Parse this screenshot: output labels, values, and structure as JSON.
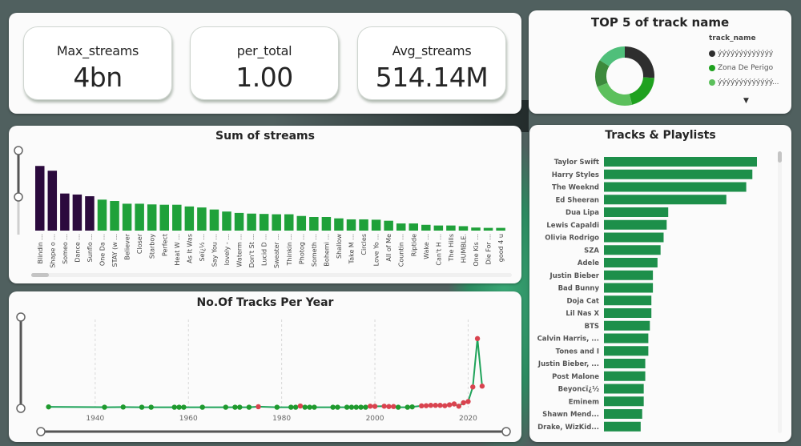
{
  "kpis": [
    {
      "label": "Max_streams",
      "value": "4bn"
    },
    {
      "label": "per_total",
      "value": "1.00"
    },
    {
      "label": "Avg_streams",
      "value": "514.14M"
    }
  ],
  "donut": {
    "title": "TOP 5 of track name",
    "legend_title": "track_name",
    "legend": [
      {
        "label": "ýýýýýýýýýýýýý",
        "color": "#2e2e2e"
      },
      {
        "label": "Zona De Perigo",
        "color": "#1fa11f"
      },
      {
        "label": "ýýýýýýýýýýýýý...",
        "color": "#5cc05c"
      }
    ],
    "more_icon": "▼",
    "slices": [
      {
        "value": 26,
        "color": "#2e2e2e"
      },
      {
        "value": 20,
        "color": "#1fa11f"
      },
      {
        "value": 23,
        "color": "#5cc05c"
      },
      {
        "value": 15,
        "color": "#3c8a3c"
      },
      {
        "value": 16,
        "color": "#4fbf7a"
      }
    ]
  },
  "chart_data": [
    {
      "type": "bar",
      "title": "Sum of streams",
      "xlabel": "",
      "ylabel": "",
      "ylim": [
        1.8,
        3.8
      ],
      "value_unit": "billions",
      "highlight_count": 5,
      "colors": {
        "highlight": "#2b0a3d",
        "normal": "#1fa13a"
      },
      "categories": [
        "Blindin ...",
        "Shape o ...",
        "Someo ...",
        "Dance ...",
        "Sunflo ...",
        "One Da ...",
        "STAY (w ...",
        "Believer",
        "Closer",
        "Starboy",
        "Perfect",
        "Heat W ...",
        "As It Was",
        "Seï¿½ ...",
        "Say You ...",
        "lovely - ...",
        "Waterm ...",
        "Don't St ...",
        "Lucid D ...",
        "Sweater ...",
        "Thinkin ...",
        "Photog ...",
        "Someth ...",
        "Bohemi ...",
        "Shallow",
        "Take M ...",
        "Circles",
        "Love Yo ...",
        "All of Me",
        "Countin ...",
        "Riptide",
        "Wake ...",
        "Can't H ...",
        "The Hills",
        "HUMBLE.",
        "One Kis ...",
        "Die For ...",
        "good 4 u"
      ],
      "values": [
        3.7,
        3.56,
        2.89,
        2.86,
        2.81,
        2.71,
        2.67,
        2.59,
        2.59,
        2.57,
        2.56,
        2.56,
        2.51,
        2.48,
        2.42,
        2.36,
        2.32,
        2.3,
        2.29,
        2.28,
        2.28,
        2.23,
        2.2,
        2.2,
        2.16,
        2.13,
        2.13,
        2.12,
        2.09,
        2.01,
        2.01,
        1.97,
        1.95,
        1.95,
        1.93,
        1.89,
        1.88,
        1.88
      ]
    },
    {
      "type": "line",
      "title": "No.Of Tracks Per Year",
      "xlabel": "",
      "ylabel": "",
      "xlim": [
        1928,
        2026
      ],
      "ylim": [
        0,
        420
      ],
      "x_ticks": [
        "1940",
        "1960",
        "1980",
        "2000",
        "2020"
      ],
      "grid": "vertical-dashed",
      "colors": {
        "line": "#1fa35a",
        "above": "#d9434f",
        "below": "#1f9a2e"
      },
      "x": [
        1930,
        1942,
        1946,
        1950,
        1952,
        1957,
        1958,
        1959,
        1963,
        1968,
        1970,
        1971,
        1973,
        1975,
        1979,
        1982,
        1983,
        1984,
        1985,
        1986,
        1987,
        1991,
        1992,
        1994,
        1995,
        1996,
        1997,
        1998,
        1999,
        2000,
        2002,
        2003,
        2004,
        2005,
        2007,
        2008,
        2010,
        2011,
        2012,
        2013,
        2014,
        2015,
        2016,
        2017,
        2018,
        2019,
        2020,
        2021,
        2022,
        2023
      ],
      "y": [
        4,
        2,
        3,
        2,
        2,
        2,
        2,
        2,
        2,
        2,
        2,
        2,
        2,
        5,
        2,
        2,
        2,
        9,
        2,
        2,
        2,
        2,
        2,
        2,
        2,
        2,
        2,
        2,
        8,
        7,
        8,
        6,
        6,
        2,
        2,
        4,
        10,
        11,
        13,
        13,
        13,
        11,
        16,
        21,
        8,
        28,
        35,
        120,
        402,
        125
      ],
      "above_avg": [
        false,
        false,
        false,
        false,
        false,
        false,
        false,
        false,
        false,
        false,
        false,
        false,
        false,
        true,
        false,
        false,
        false,
        true,
        false,
        false,
        false,
        false,
        false,
        false,
        false,
        false,
        false,
        false,
        true,
        true,
        true,
        true,
        true,
        false,
        false,
        false,
        true,
        true,
        true,
        true,
        true,
        true,
        true,
        true,
        true,
        true,
        true,
        true,
        true,
        true
      ]
    },
    {
      "type": "bar",
      "orientation": "horizontal",
      "title": "Tracks & Playlists",
      "xlabel": "",
      "ylabel": "",
      "xlim": [
        0,
        100
      ],
      "color": "#1d8f4a",
      "categories": [
        "Taylor Swift",
        "Harry Styles",
        "The Weeknd",
        "Ed Sheeran",
        "Dua Lipa",
        "Lewis Capaldi",
        "Olivia Rodrigo",
        "SZA",
        "Adele",
        "Justin Bieber",
        "Bad Bunny",
        "Doja Cat",
        "Lil Nas X",
        "BTS",
        "Calvin Harris, ...",
        "Tones and I",
        "Justin Bieber, ...",
        "Post Malone",
        "Beyoncï¿½",
        "Eminem",
        "Shawn Mend...",
        "Drake, WizKid..."
      ],
      "values": [
        100,
        97,
        93,
        80,
        42,
        41,
        39,
        37,
        35,
        32,
        32,
        31,
        31,
        30,
        29,
        29,
        27,
        27,
        26,
        26,
        25,
        24
      ]
    }
  ]
}
